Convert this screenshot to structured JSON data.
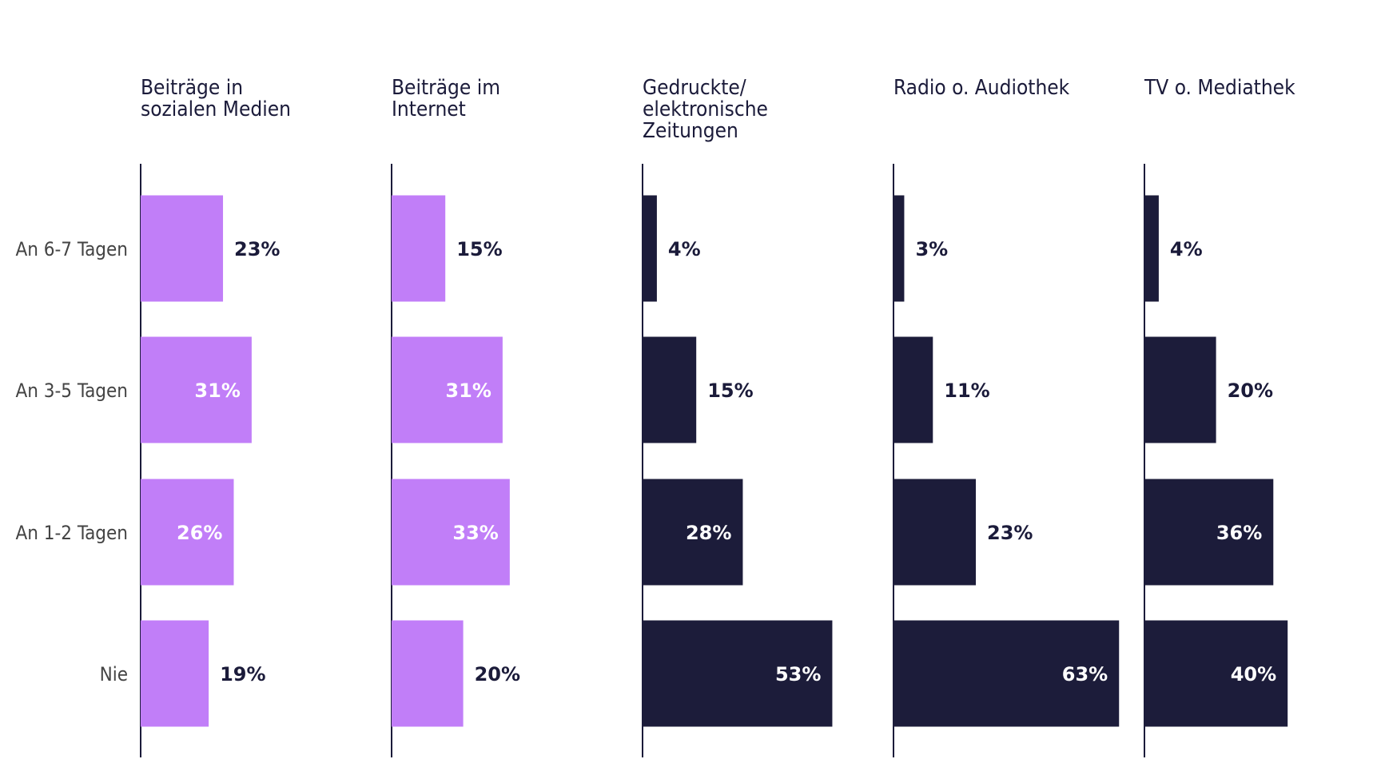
{
  "chart_data": {
    "type": "bar",
    "orientation": "horizontal",
    "categories": [
      "An 6-7 Tagen",
      "An 3-5 Tagen",
      "An 1-2 Tagen",
      "Nie"
    ],
    "value_suffix": "%",
    "xlim": [
      0,
      70
    ],
    "grid": false,
    "legend": "none",
    "panels": [
      {
        "title": "Beiträge in sozialen Medien",
        "values": [
          23,
          31,
          26,
          19
        ],
        "color": "#c17ef8"
      },
      {
        "title": "Beiträge im Internet",
        "values": [
          15,
          31,
          33,
          20
        ],
        "color": "#c17ef8"
      },
      {
        "title": "Gedruckte/ elektronische Zeitungen",
        "values": [
          4,
          15,
          28,
          53
        ],
        "color": "#1c1c3a"
      },
      {
        "title": "Radio o. Audiothek",
        "values": [
          3,
          11,
          23,
          63
        ],
        "color": "#1c1c3a"
      },
      {
        "title": "TV o. Mediathek",
        "values": [
          4,
          20,
          36,
          40
        ],
        "color": "#1c1c3a"
      }
    ]
  },
  "colors": {
    "label_dark": "#1b1b3a",
    "label_light": "#ffffff",
    "axis": "#1b1b3a"
  }
}
